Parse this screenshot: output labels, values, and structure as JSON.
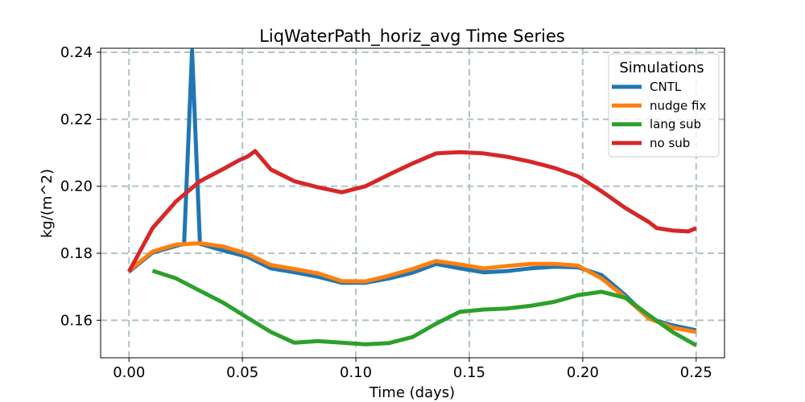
{
  "chart_data": {
    "type": "line",
    "title": "LiqWaterPath_horiz_avg Time Series",
    "xlabel": "Time (days)",
    "ylabel": "kg/(m^2)",
    "xlim": [
      -0.0125,
      0.2625
    ],
    "ylim": [
      0.1488,
      0.2412
    ],
    "xticks": [
      0.0,
      0.05,
      0.1,
      0.15,
      0.2,
      0.25
    ],
    "xtick_labels": [
      "0.00",
      "0.05",
      "0.10",
      "0.15",
      "0.20",
      "0.25"
    ],
    "yticks": [
      0.16,
      0.18,
      0.2,
      0.22,
      0.24
    ],
    "ytick_labels": [
      "0.16",
      "0.18",
      "0.20",
      "0.22",
      "0.24"
    ],
    "grid": true,
    "legend": {
      "title": "Simulations",
      "position": "top-right"
    },
    "series": [
      {
        "name": "CNTL",
        "color": "#1f77b4",
        "x": [
          0.0,
          0.0104,
          0.0208,
          0.0243,
          0.0278,
          0.0313,
          0.0417,
          0.0521,
          0.0625,
          0.0729,
          0.0833,
          0.0938,
          0.1042,
          0.1146,
          0.125,
          0.1354,
          0.1458,
          0.1563,
          0.1667,
          0.1771,
          0.1875,
          0.1979,
          0.2083,
          0.2188,
          0.2292,
          0.2396,
          0.25
        ],
        "y": [
          0.1745,
          0.1802,
          0.1822,
          0.1828,
          0.2405,
          0.1828,
          0.1808,
          0.179,
          0.1755,
          0.1743,
          0.173,
          0.1712,
          0.1712,
          0.1725,
          0.1742,
          0.1768,
          0.1755,
          0.1743,
          0.1747,
          0.1755,
          0.176,
          0.1758,
          0.1735,
          0.1675,
          0.1605,
          0.1585,
          0.157
        ]
      },
      {
        "name": "nudge fix",
        "color": "#ff7f0e",
        "x": [
          0.0,
          0.0104,
          0.0208,
          0.0313,
          0.0417,
          0.0521,
          0.0625,
          0.0729,
          0.0833,
          0.0938,
          0.1042,
          0.1146,
          0.125,
          0.1354,
          0.1458,
          0.1563,
          0.1667,
          0.1771,
          0.1875,
          0.1979,
          0.2083,
          0.2188,
          0.2292,
          0.2396,
          0.25
        ],
        "y": [
          0.1748,
          0.1805,
          0.1826,
          0.183,
          0.182,
          0.1798,
          0.1765,
          0.1753,
          0.174,
          0.1717,
          0.1716,
          0.1733,
          0.1753,
          0.1777,
          0.1767,
          0.1755,
          0.1762,
          0.1768,
          0.1768,
          0.1763,
          0.1725,
          0.1668,
          0.1605,
          0.1578,
          0.1565
        ]
      },
      {
        "name": "lang sub",
        "color": "#2ca02c",
        "x": [
          0.0104,
          0.0208,
          0.0313,
          0.0417,
          0.0521,
          0.0625,
          0.0729,
          0.0833,
          0.0938,
          0.1042,
          0.1146,
          0.125,
          0.1354,
          0.1458,
          0.1563,
          0.1667,
          0.1771,
          0.1875,
          0.1979,
          0.2083,
          0.2188,
          0.2292,
          0.2396,
          0.25
        ],
        "y": [
          0.1748,
          0.1725,
          0.1688,
          0.1652,
          0.1608,
          0.1565,
          0.1533,
          0.1538,
          0.1533,
          0.1528,
          0.1532,
          0.155,
          0.159,
          0.1625,
          0.1632,
          0.1635,
          0.1643,
          0.1655,
          0.1675,
          0.1685,
          0.1667,
          0.1615,
          0.1565,
          0.1525
        ]
      },
      {
        "name": "no sub",
        "color": "#d62728",
        "x": [
          0.0,
          0.0104,
          0.0208,
          0.0313,
          0.0417,
          0.0486,
          0.0521,
          0.0556,
          0.0625,
          0.0729,
          0.0833,
          0.0938,
          0.1042,
          0.1146,
          0.125,
          0.1354,
          0.1458,
          0.1563,
          0.1667,
          0.1771,
          0.1875,
          0.1979,
          0.2083,
          0.2188,
          0.2292,
          0.2326,
          0.2396,
          0.2465,
          0.25
        ],
        "y": [
          0.1745,
          0.1875,
          0.1955,
          0.2015,
          0.2052,
          0.2078,
          0.2088,
          0.2105,
          0.205,
          0.2015,
          0.1997,
          0.1982,
          0.2,
          0.2035,
          0.2068,
          0.2098,
          0.2102,
          0.2098,
          0.2088,
          0.2073,
          0.2055,
          0.203,
          0.1985,
          0.1935,
          0.1893,
          0.1875,
          0.1868,
          0.1865,
          0.1875
        ]
      }
    ]
  }
}
